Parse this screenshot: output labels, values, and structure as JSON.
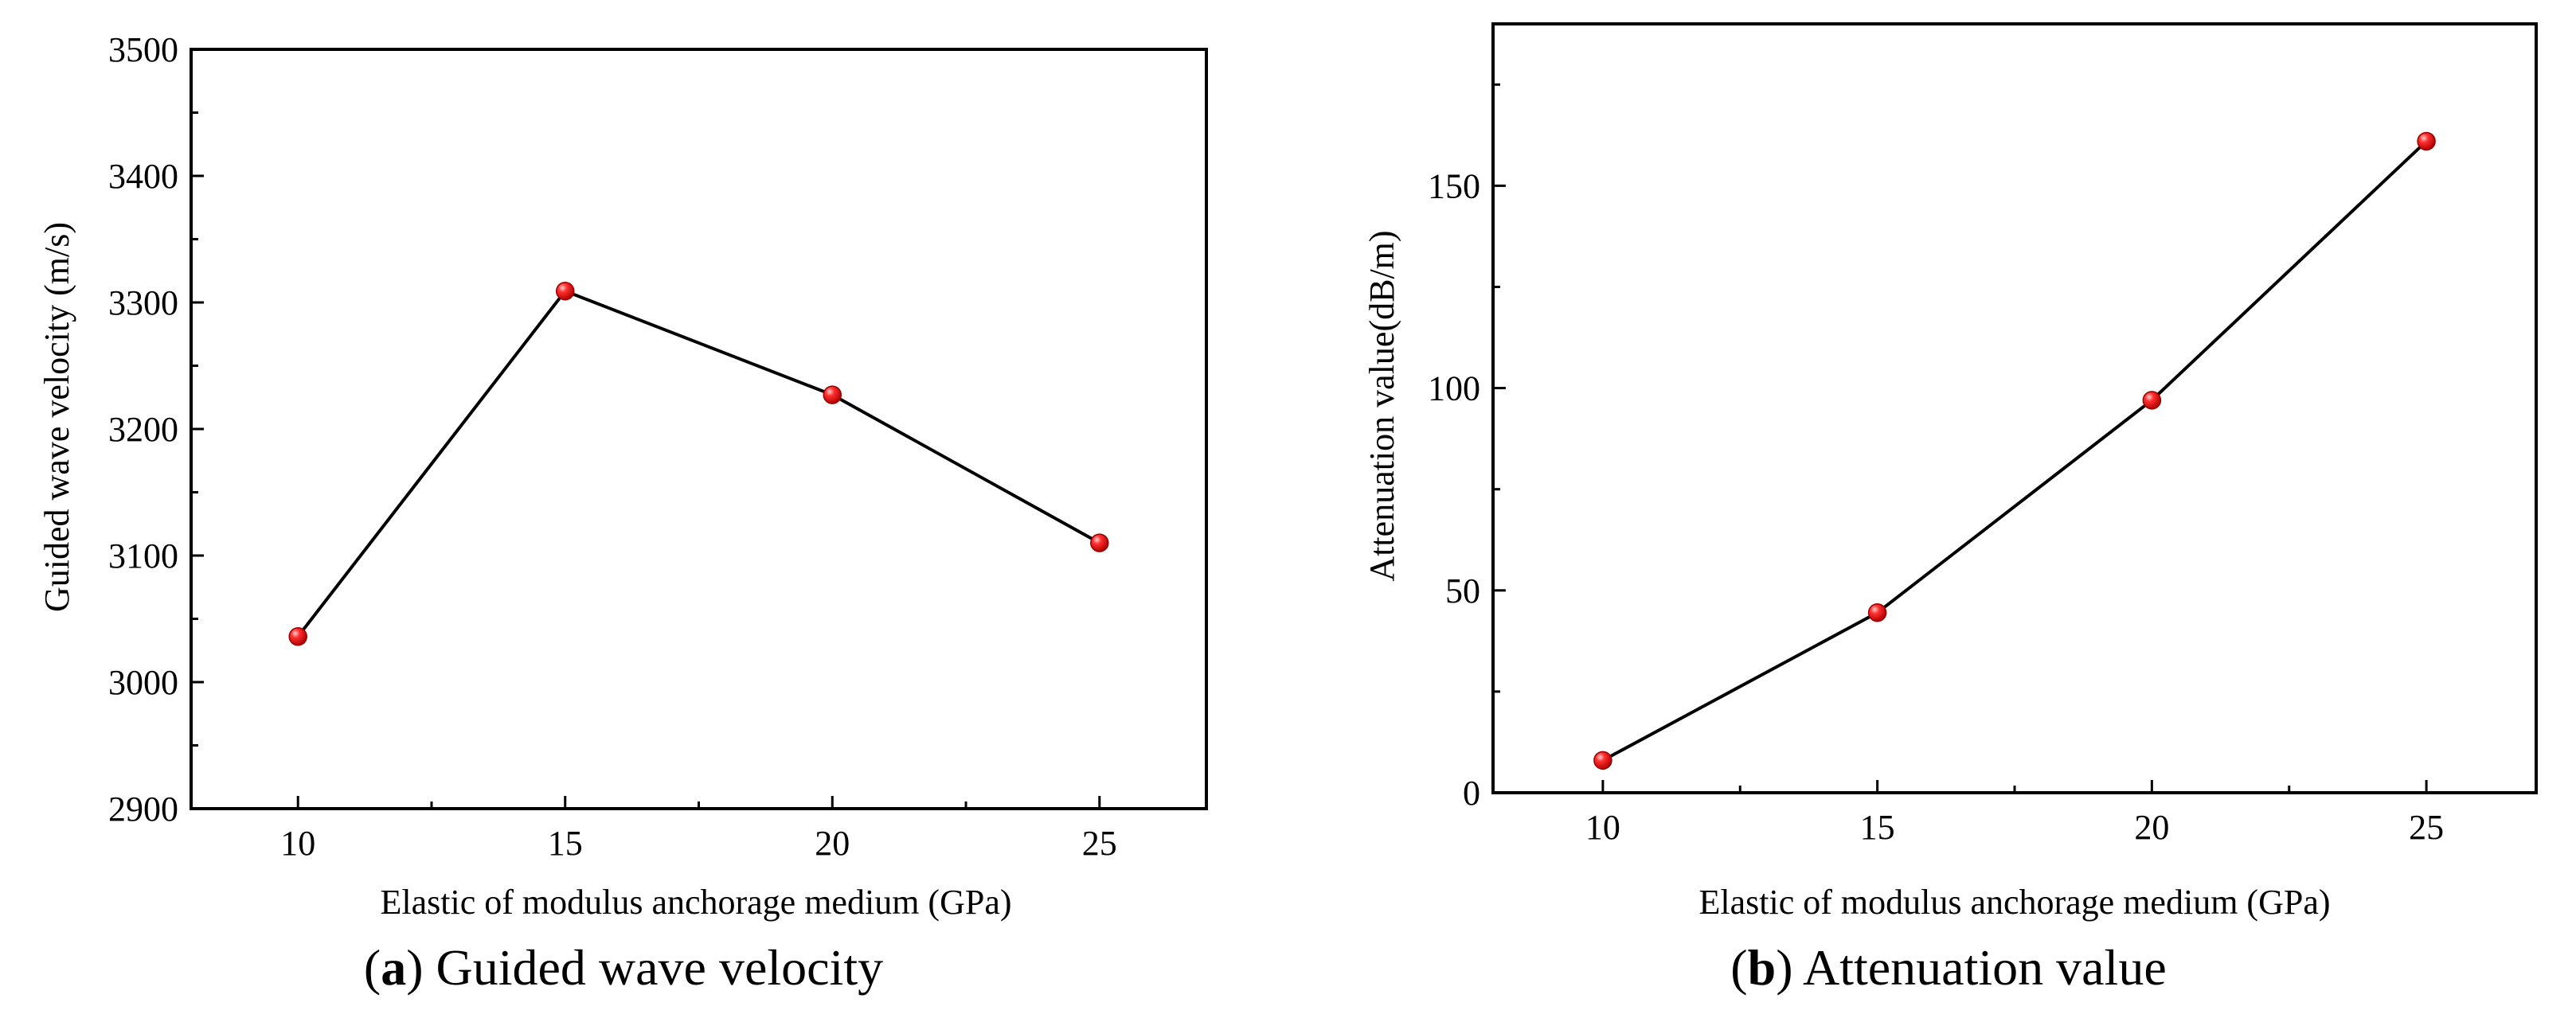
{
  "colors": {
    "axis": "#000000",
    "line": "#000000",
    "marker": "#ee1c1c",
    "marker_highlight": "#ffd0d0",
    "background": "#ffffff"
  },
  "chart_data": [
    {
      "id": "a",
      "type": "line",
      "title": "",
      "xlabel": "Elastic of modulus anchorage medium (GPa)",
      "ylabel": "Guided wave velocity (m/s)",
      "x": [
        10,
        15,
        20,
        25
      ],
      "series": [
        {
          "name": "Guided wave velocity",
          "values": [
            3036,
            3309,
            3227,
            3110
          ]
        }
      ],
      "xlim": [
        8,
        27
      ],
      "ylim": [
        2900,
        3500
      ],
      "xticks": [
        10,
        15,
        20,
        25
      ],
      "xticks_minor": [
        12.5,
        17.5,
        22.5
      ],
      "yticks": [
        2900,
        3000,
        3100,
        3200,
        3300,
        3400,
        3500
      ],
      "yticks_minor": [
        2950,
        3050,
        3150,
        3250,
        3350,
        3450
      ],
      "grid": false,
      "caption": {
        "letter": "a",
        "open": "(",
        "close": ")",
        "text": "Guided wave velocity"
      }
    },
    {
      "id": "b",
      "type": "line",
      "title": "",
      "xlabel": "Elastic of modulus anchorage medium (GPa)",
      "ylabel": "Attenuation value(dB/m)",
      "x": [
        10,
        15,
        20,
        25
      ],
      "series": [
        {
          "name": "Attenuation value",
          "values": [
            8,
            44.5,
            97,
            161
          ]
        }
      ],
      "xlim": [
        8,
        27
      ],
      "ylim": [
        0,
        190
      ],
      "xticks": [
        10,
        15,
        20,
        25
      ],
      "xticks_minor": [
        12.5,
        17.5,
        22.5
      ],
      "yticks": [
        0,
        50,
        100,
        150
      ],
      "yticks_minor": [
        25,
        75,
        125,
        175
      ],
      "grid": false,
      "caption": {
        "letter": "b",
        "open": "(",
        "close": ")",
        "text": "Attenuation value"
      }
    }
  ]
}
